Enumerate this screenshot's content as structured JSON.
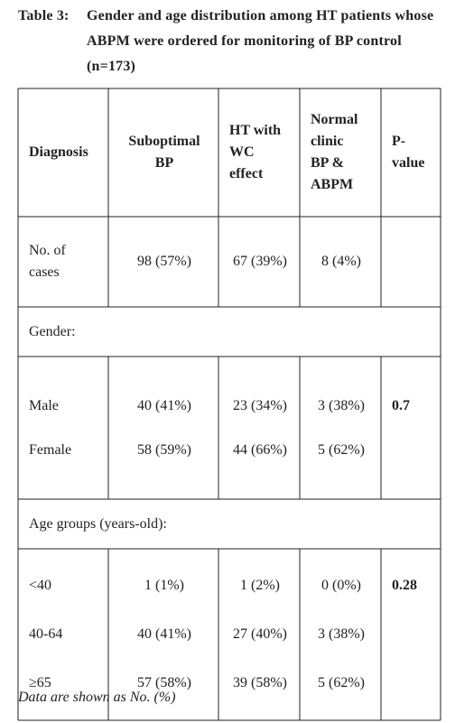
{
  "title": {
    "label": "Table 3:",
    "text": "Gender and age distribution among HT patients whose ABPM were ordered for monitoring of BP control (n=173)"
  },
  "table": {
    "header": [
      "Diagnosis",
      "Suboptimal BP",
      "HT with WC effect",
      "Normal clinic BP & ABPM",
      "P-value"
    ],
    "body": [
      {
        "cells": [
          "No. of cases",
          "98 (57%)",
          "67 (39%)",
          "8 (4%)"
        ]
      },
      {
        "section": "Gender:"
      },
      {
        "rows": [
          [
            "Male",
            "40 (41%)",
            "23 (34%)",
            "3 (38%)"
          ],
          [
            "Female",
            "58 (59%)",
            "44 (66%)",
            "5 (62%)"
          ]
        ],
        "p_value": "0.7"
      },
      {
        "section": "Age groups (years-old):"
      },
      {
        "rows": [
          [
            "<40",
            "1 (1%)",
            "1 (2%)",
            "0 (0%)"
          ],
          [
            "40-64",
            "40 (41%)",
            "27 (40%)",
            "3 (38%)"
          ],
          [
            "≥65",
            "57 (58%)",
            "39 (58%)",
            "5 (62%)"
          ]
        ],
        "p_value": "0.28"
      }
    ]
  },
  "footnote": "Data are shown as No. (%)"
}
